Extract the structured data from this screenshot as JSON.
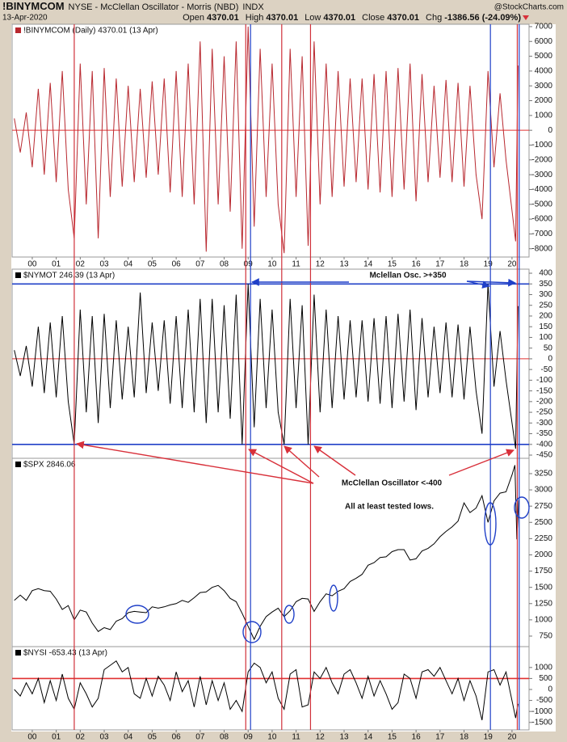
{
  "header": {
    "symbol": "!BINYMCOM",
    "description": "NYSE - McClellan Oscillator - Morris (NBD)",
    "exchange": "INDX",
    "date": "13-Apr-2020",
    "source": "@StockCharts.com",
    "quote": [
      {
        "label": "Open",
        "value": "4370.01"
      },
      {
        "label": "High",
        "value": "4370.01"
      },
      {
        "label": "Low",
        "value": "4370.01"
      },
      {
        "label": "Close",
        "value": "4370.01"
      },
      {
        "label": "Chg",
        "value": "-1386.56 (-24.09%)"
      }
    ]
  },
  "vlines": {
    "red": {
      "color": "#d0303a",
      "x": [
        1.75,
        8.9,
        10.4,
        11.6,
        20.22
      ]
    },
    "blue": {
      "color": "#2040c8",
      "x": [
        9.1,
        19.1,
        20.3
      ]
    }
  },
  "chart_data": [
    {
      "type": "line",
      "xlim": [
        -0.84,
        20.71
      ],
      "ylim": [
        -8560,
        7160
      ],
      "yticks": [
        7000,
        6000,
        5000,
        4000,
        3000,
        2000,
        1000,
        0,
        -1000,
        -2000,
        -3000,
        -4000,
        -5000,
        -6000,
        -7000,
        -8000
      ],
      "xticks": [
        {
          "value": 0,
          "label": "00"
        },
        {
          "value": 1,
          "label": "01"
        },
        {
          "value": 2,
          "label": "02"
        },
        {
          "value": 3,
          "label": "03"
        },
        {
          "value": 4,
          "label": "04"
        },
        {
          "value": 5,
          "label": "05"
        },
        {
          "value": 6,
          "label": "06"
        },
        {
          "value": 7,
          "label": "07"
        },
        {
          "value": 8,
          "label": "08"
        },
        {
          "value": 9,
          "label": "09"
        },
        10,
        11,
        12,
        13,
        14,
        15,
        16,
        17,
        18,
        19,
        20
      ],
      "hlines": [
        {
          "value": 0,
          "color": "#e03030"
        }
      ],
      "x": [
        -0.75,
        -0.5,
        -0.25,
        0,
        0.25,
        0.5,
        0.75,
        1,
        1.25,
        1.5,
        1.75,
        2,
        2.25,
        2.5,
        2.75,
        3,
        3.25,
        3.5,
        3.75,
        4,
        4.25,
        4.5,
        4.75,
        5,
        5.25,
        5.5,
        5.75,
        6,
        6.25,
        6.5,
        6.75,
        7,
        7.25,
        7.5,
        7.75,
        8,
        8.25,
        8.5,
        8.75,
        9,
        9.25,
        9.5,
        9.75,
        10,
        10.25,
        10.5,
        10.75,
        11,
        11.25,
        11.5,
        11.75,
        12,
        12.25,
        12.5,
        12.75,
        13,
        13.25,
        13.5,
        13.75,
        14,
        14.25,
        14.5,
        14.75,
        15,
        15.25,
        15.5,
        15.75,
        16,
        16.25,
        16.5,
        16.75,
        17,
        17.25,
        17.5,
        17.75,
        18,
        18.25,
        18.5,
        18.75,
        19,
        19.25,
        19.5,
        19.75,
        20.15,
        20.25
      ],
      "series": [
        {
          "name": "!BINYMCOM (Daily) 4370.01 (13 Apr)",
          "color": "#b8282f",
          "values": [
            800,
            -1500,
            1200,
            -2500,
            2800,
            -3000,
            3200,
            -3500,
            4000,
            -4000,
            -7300,
            4500,
            -5000,
            4000,
            -7300,
            4200,
            -4500,
            3500,
            -3800,
            3000,
            -3500,
            2800,
            -3200,
            3300,
            -3000,
            3500,
            -4200,
            4000,
            -4500,
            4500,
            -5000,
            6000,
            -8200,
            5500,
            -5000,
            5000,
            -5500,
            6000,
            -8000,
            7000,
            -6500,
            5500,
            -4500,
            4500,
            -5000,
            -8300,
            5500,
            -4500,
            5000,
            -7800,
            6000,
            -5000,
            4500,
            -4500,
            4000,
            -3800,
            3500,
            -3500,
            3500,
            -4000,
            3800,
            -4200,
            4000,
            -4500,
            4200,
            -4000,
            4500,
            -4800,
            3800,
            -3500,
            3000,
            -3200,
            3400,
            -3500,
            3200,
            -3800,
            3000,
            -3000,
            -6000,
            4000,
            -2500,
            2500,
            -2000,
            -7500,
            4370.01
          ]
        }
      ]
    },
    {
      "type": "line",
      "xlim": [
        -0.84,
        20.71
      ],
      "ylim": [
        -465,
        419
      ],
      "yticks": [
        400,
        350,
        300,
        250,
        200,
        150,
        100,
        50,
        0,
        -50,
        -100,
        -150,
        -200,
        -250,
        -300,
        -350,
        -400,
        -450
      ],
      "hlines": [
        {
          "value": 0,
          "color": "#e03030"
        },
        {
          "value": 350,
          "color": "#2040c8"
        },
        {
          "value": -400,
          "color": "#2040c8"
        }
      ],
      "annotation": "Mclellan Osc. >+350",
      "x": [
        -0.75,
        -0.5,
        -0.25,
        0,
        0.25,
        0.5,
        0.75,
        1,
        1.25,
        1.5,
        1.75,
        2,
        2.25,
        2.5,
        2.75,
        3,
        3.25,
        3.5,
        3.75,
        4,
        4.25,
        4.5,
        4.75,
        5,
        5.25,
        5.5,
        5.75,
        6,
        6.25,
        6.5,
        6.75,
        7,
        7.25,
        7.5,
        7.75,
        8,
        8.25,
        8.5,
        8.75,
        9,
        9.25,
        9.5,
        9.75,
        10,
        10.25,
        10.5,
        10.75,
        11,
        11.25,
        11.5,
        11.75,
        12,
        12.25,
        12.5,
        12.75,
        13,
        13.25,
        13.5,
        13.75,
        14,
        14.25,
        14.5,
        14.75,
        15,
        15.25,
        15.5,
        15.75,
        16,
        16.25,
        16.5,
        16.75,
        17,
        17.25,
        17.5,
        17.75,
        18,
        18.25,
        18.5,
        18.75,
        19,
        19.25,
        19.5,
        19.75,
        20.15,
        20.25
      ],
      "series": [
        {
          "name": "$NYMOT 246.39 (13 Apr)",
          "color": "#000000",
          "values": [
            40,
            -80,
            60,
            -130,
            150,
            -160,
            170,
            -180,
            200,
            -200,
            -400,
            230,
            -250,
            200,
            -300,
            210,
            -230,
            180,
            -190,
            150,
            -180,
            310,
            -160,
            170,
            -150,
            180,
            -210,
            200,
            -230,
            230,
            -250,
            280,
            -300,
            280,
            -250,
            250,
            -280,
            300,
            -400,
            350,
            -320,
            280,
            -230,
            230,
            -250,
            -400,
            280,
            -230,
            250,
            -400,
            300,
            -250,
            230,
            -230,
            200,
            -190,
            180,
            -180,
            180,
            -200,
            190,
            -210,
            200,
            -230,
            210,
            -200,
            230,
            -240,
            190,
            -180,
            150,
            -160,
            170,
            -180,
            160,
            -190,
            150,
            -150,
            -350,
            350,
            -130,
            130,
            -100,
            -420,
            246.39
          ]
        }
      ]
    },
    {
      "type": "line",
      "xlim": [
        -0.84,
        20.71
      ],
      "ylim": [
        588,
        3486
      ],
      "yticks": [
        3250,
        3000,
        2750,
        2500,
        2250,
        2000,
        1750,
        1500,
        1250,
        1000,
        750
      ],
      "annotations": [
        "McClellan Oscillator <-400",
        "All at least tested lows."
      ],
      "x": [
        -0.75,
        -0.5,
        -0.25,
        0,
        0.25,
        0.5,
        0.75,
        1,
        1.25,
        1.5,
        1.75,
        2,
        2.25,
        2.5,
        2.75,
        3,
        3.25,
        3.5,
        3.75,
        4,
        4.25,
        4.5,
        4.75,
        5,
        5.25,
        5.5,
        5.75,
        6,
        6.25,
        6.5,
        6.75,
        7,
        7.25,
        7.5,
        7.75,
        8,
        8.25,
        8.5,
        8.75,
        9,
        9.25,
        9.5,
        9.75,
        10,
        10.25,
        10.5,
        10.75,
        11,
        11.25,
        11.5,
        11.75,
        12,
        12.25,
        12.5,
        12.75,
        13,
        13.25,
        13.5,
        13.75,
        14,
        14.25,
        14.5,
        14.75,
        15,
        15.25,
        15.5,
        15.75,
        16,
        16.25,
        16.5,
        16.75,
        17,
        17.25,
        17.5,
        17.75,
        18,
        18.25,
        18.5,
        18.75,
        19,
        19.25,
        19.5,
        19.75,
        20,
        20.12,
        20.2,
        20.28
      ],
      "series": [
        {
          "name": "$SPX 2846.06",
          "color": "#000000",
          "values": [
            1300,
            1380,
            1300,
            1450,
            1480,
            1450,
            1440,
            1320,
            1160,
            1220,
            1000,
            1150,
            1120,
            950,
            820,
            880,
            850,
            980,
            1020,
            1110,
            1130,
            1120,
            1110,
            1200,
            1180,
            1200,
            1230,
            1250,
            1300,
            1270,
            1340,
            1420,
            1430,
            1500,
            1530,
            1450,
            1330,
            1280,
            1100,
            900,
            700,
            900,
            1050,
            1120,
            1180,
            1050,
            1140,
            1280,
            1330,
            1320,
            1130,
            1280,
            1400,
            1370,
            1440,
            1480,
            1590,
            1640,
            1700,
            1840,
            1880,
            1960,
            1970,
            2050,
            2080,
            2080,
            1920,
            1940,
            2060,
            2100,
            2170,
            2280,
            2360,
            2430,
            2520,
            2800,
            2650,
            2720,
            2910,
            2500,
            2830,
            2950,
            2970,
            3230,
            3380,
            2240,
            2846.06
          ]
        }
      ]
    },
    {
      "type": "line",
      "xlim": [
        -0.84,
        20.71
      ],
      "ylim": [
        -1840,
        1950
      ],
      "yticks": [
        1000,
        500,
        0,
        -500,
        -1000,
        -1500
      ],
      "xticks": [
        {
          "value": 0,
          "label": "00"
        },
        {
          "value": 1,
          "label": "01"
        },
        {
          "value": 2,
          "label": "02"
        },
        {
          "value": 3,
          "label": "03"
        },
        {
          "value": 4,
          "label": "04"
        },
        {
          "value": 5,
          "label": "05"
        },
        {
          "value": 6,
          "label": "06"
        },
        {
          "value": 7,
          "label": "07"
        },
        {
          "value": 8,
          "label": "08"
        },
        {
          "value": 9,
          "label": "09"
        },
        10,
        11,
        12,
        13,
        14,
        15,
        16,
        17,
        18,
        19,
        20
      ],
      "hlines": [
        {
          "value": 500,
          "color": "#e03030"
        }
      ],
      "x": [
        -0.75,
        -0.5,
        -0.25,
        0,
        0.25,
        0.5,
        0.75,
        1,
        1.25,
        1.5,
        1.75,
        2,
        2.25,
        2.5,
        2.75,
        3,
        3.25,
        3.5,
        3.75,
        4,
        4.25,
        4.5,
        4.75,
        5,
        5.25,
        5.5,
        5.75,
        6,
        6.25,
        6.5,
        6.75,
        7,
        7.25,
        7.5,
        7.75,
        8,
        8.25,
        8.5,
        8.75,
        9,
        9.25,
        9.5,
        9.75,
        10,
        10.25,
        10.5,
        10.75,
        11,
        11.25,
        11.5,
        11.75,
        12,
        12.25,
        12.5,
        12.75,
        13,
        13.25,
        13.5,
        13.75,
        14,
        14.25,
        14.5,
        14.75,
        15,
        15.25,
        15.5,
        15.75,
        16,
        16.25,
        16.5,
        16.75,
        17,
        17.25,
        17.5,
        17.75,
        18,
        18.25,
        18.5,
        18.75,
        19,
        19.25,
        19.5,
        19.75,
        20.15,
        20.25
      ],
      "series": [
        {
          "name": "$NYSI -653.43 (13 Apr)",
          "color": "#000000",
          "values": [
            0,
            -300,
            300,
            -200,
            500,
            -600,
            400,
            -500,
            700,
            -400,
            -900,
            300,
            -200,
            -800,
            -400,
            900,
            1100,
            1300,
            800,
            1000,
            -200,
            -400,
            500,
            -300,
            600,
            200,
            -500,
            800,
            -100,
            400,
            -800,
            600,
            -700,
            400,
            -500,
            300,
            -900,
            -500,
            -1000,
            800,
            1200,
            1000,
            300,
            800,
            -400,
            -900,
            700,
            900,
            -800,
            -700,
            800,
            500,
            1000,
            300,
            -200,
            700,
            900,
            300,
            -400,
            600,
            -300,
            400,
            -200,
            -900,
            -600,
            700,
            500,
            -400,
            800,
            900,
            600,
            1000,
            400,
            -200,
            500,
            -500,
            400,
            -300,
            -1400,
            800,
            900,
            200,
            800,
            -1300,
            -653.43
          ]
        }
      ]
    }
  ]
}
